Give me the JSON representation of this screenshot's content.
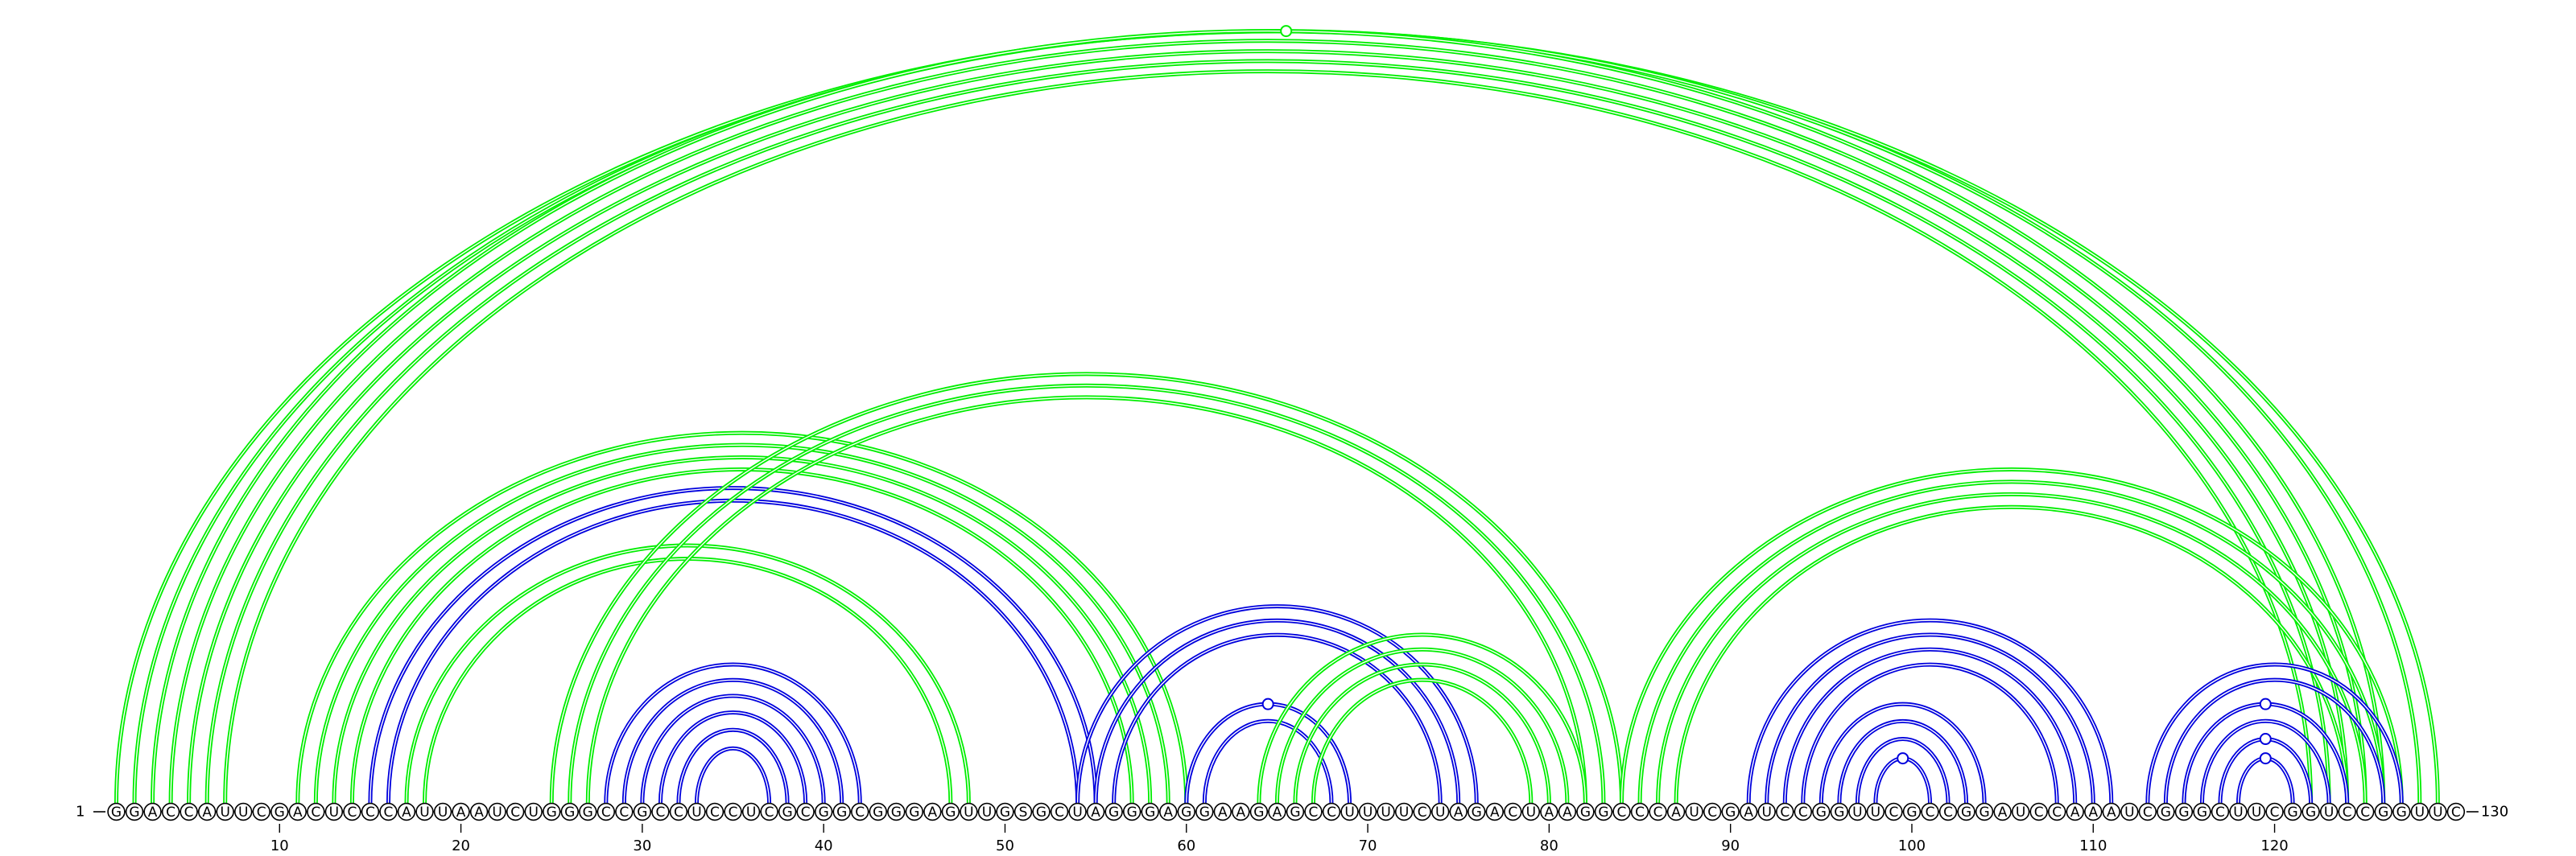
{
  "sequence": "GGACCAUUCGACUCCCAUUAAUCUGGGCCGCCUCCUCGCGGCGGGAGUUGSGCUAGGGAGGAAGAGCCUUUUCUAGACUAAGGCCCAUCGAUCCGGUUCGCCGGAUCCAAAUCGGGCUUCGGUCCGGUUC",
  "start_label": "1",
  "end_label": "130",
  "tick_labels": [
    "10",
    "20",
    "30",
    "40",
    "50",
    "60",
    "70",
    "80",
    "90",
    "100",
    "110",
    "120"
  ],
  "colors": {
    "green": "#00ee00",
    "blue": "#0000dd"
  },
  "arc_groups": [
    {
      "color": "green",
      "pairs": [
        [
          1,
          129
        ],
        [
          2,
          128
        ],
        [
          3,
          126
        ],
        [
          4,
          125
        ],
        [
          5,
          124
        ],
        [
          6,
          123
        ],
        [
          7,
          122
        ]
      ]
    },
    {
      "color": "green",
      "pairs": [
        [
          11,
          60
        ],
        [
          12,
          59
        ],
        [
          13,
          58
        ],
        [
          14,
          57
        ]
      ]
    },
    {
      "color": "blue",
      "pairs": [
        [
          15,
          55
        ],
        [
          16,
          54
        ]
      ]
    },
    {
      "color": "green",
      "pairs": [
        [
          17,
          48
        ],
        [
          18,
          47
        ]
      ]
    },
    {
      "color": "green",
      "pairs": [
        [
          25,
          84
        ],
        [
          26,
          83
        ],
        [
          27,
          82
        ]
      ]
    },
    {
      "color": "blue",
      "pairs": [
        [
          28,
          42
        ],
        [
          29,
          41
        ],
        [
          30,
          40
        ],
        [
          31,
          39
        ],
        [
          32,
          38
        ],
        [
          33,
          37
        ]
      ]
    },
    {
      "color": "blue",
      "pairs": [
        [
          54,
          76
        ],
        [
          55,
          75
        ],
        [
          56,
          74
        ]
      ]
    },
    {
      "color": "blue",
      "pairs": [
        [
          60,
          69
        ],
        [
          61,
          68
        ]
      ]
    },
    {
      "color": "green",
      "pairs": [
        [
          64,
          82
        ],
        [
          65,
          81
        ],
        [
          66,
          80
        ],
        [
          67,
          79
        ]
      ]
    },
    {
      "color": "green",
      "pairs": [
        [
          84,
          127
        ],
        [
          85,
          126
        ],
        [
          86,
          125
        ],
        [
          87,
          124
        ]
      ]
    },
    {
      "color": "blue",
      "pairs": [
        [
          91,
          111
        ],
        [
          92,
          110
        ],
        [
          93,
          109
        ],
        [
          94,
          108
        ],
        [
          95,
          104
        ],
        [
          96,
          103
        ],
        [
          97,
          102
        ],
        [
          98,
          101
        ]
      ]
    },
    {
      "color": "blue",
      "pairs": [
        [
          113,
          127
        ],
        [
          114,
          126
        ],
        [
          115,
          124
        ],
        [
          116,
          123
        ],
        [
          117,
          122
        ],
        [
          118,
          121
        ]
      ]
    }
  ],
  "markers": [
    {
      "color": "green",
      "position": 65.5,
      "span": 128
    },
    {
      "color": "blue",
      "position": 64.5,
      "span": 9
    },
    {
      "color": "blue",
      "position": 99.5,
      "span": 3
    },
    {
      "color": "blue",
      "position": 119.5,
      "span": 9
    },
    {
      "color": "blue",
      "position": 119.5,
      "span": 5
    },
    {
      "color": "blue",
      "position": 119.5,
      "span": 3
    }
  ]
}
